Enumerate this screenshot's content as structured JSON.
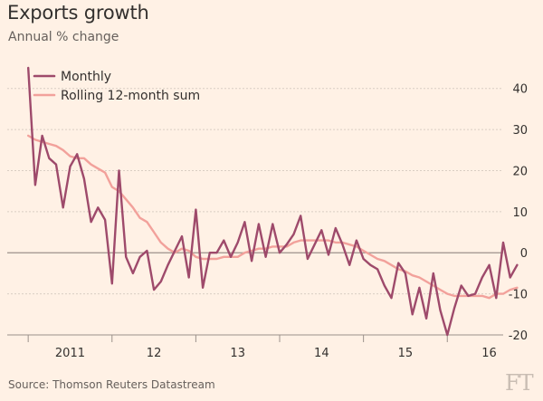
{
  "header": {
    "title": "Exports growth",
    "subtitle": "Annual % change"
  },
  "footer": {
    "source": "Source: Thomson Reuters Datastream",
    "logo": "FT"
  },
  "colors": {
    "background": "#fff1e5",
    "monthly": "#9e4a6b",
    "rolling": "#f2a19b",
    "grid": "#d9cdc3",
    "zero_line": "#9b918a",
    "text": "#33302e"
  },
  "chart_data": {
    "type": "line",
    "x_unit": "month",
    "x_start": "2011-01",
    "xlim": [
      "2010-10",
      "2016-09"
    ],
    "ylim": [
      -20,
      45
    ],
    "y_ticks": [
      40,
      30,
      20,
      10,
      0,
      -10,
      -20
    ],
    "y_tick_labels": [
      "40",
      "30",
      "20",
      "10",
      "0",
      "-10",
      "-20"
    ],
    "y_axis_position": "right",
    "x_tick_labels": [
      {
        "label": "2011",
        "at": "2011-07"
      },
      {
        "label": "12",
        "at": "2012-07"
      },
      {
        "label": "13",
        "at": "2013-07"
      },
      {
        "label": "14",
        "at": "2014-07"
      },
      {
        "label": "15",
        "at": "2015-07"
      },
      {
        "label": "16",
        "at": "2016-07"
      }
    ],
    "grid": true,
    "legend_position": "top-left",
    "series": [
      {
        "name": "Monthly",
        "values": [
          45,
          16.5,
          28.5,
          23,
          21.5,
          11,
          21,
          24,
          18,
          7.5,
          11,
          8,
          -7.5,
          20,
          -1,
          -5,
          -1,
          0.5,
          -9,
          -7,
          -3,
          0.5,
          4,
          -6,
          10.5,
          -8.5,
          0,
          0,
          3,
          -1,
          2.5,
          7.5,
          -2,
          7,
          -1,
          7,
          0,
          2,
          4.5,
          9,
          -1.5,
          2,
          5.5,
          -0.5,
          6,
          2,
          -3,
          3,
          -1.5,
          -3,
          -4,
          -8,
          -11,
          -2.5,
          -5,
          -15,
          -8.5,
          -16,
          -5,
          -14,
          -20,
          -13.5,
          -8,
          -10.5,
          -10,
          -6,
          -3,
          -11,
          2.5,
          -6,
          -3
        ]
      },
      {
        "name": "Rolling 12-month sum",
        "values": [
          28.5,
          27.5,
          27,
          26.5,
          26,
          25,
          23.5,
          23,
          23,
          21.5,
          20.5,
          19.5,
          16,
          15,
          13,
          11,
          8.5,
          7.5,
          5,
          2.5,
          1,
          0,
          1,
          0.5,
          -1,
          -1.5,
          -1.5,
          -1.5,
          -1,
          -1,
          -1,
          0,
          0.5,
          1,
          1,
          1.5,
          1.5,
          1.5,
          2.5,
          3,
          3,
          3,
          3,
          3,
          2.5,
          2.5,
          2,
          1.5,
          0.5,
          -0.5,
          -1.5,
          -2,
          -3,
          -4,
          -4.5,
          -5.5,
          -6,
          -7,
          -8,
          -9,
          -10,
          -10.5,
          -10.5,
          -10.5,
          -10.5,
          -10.5,
          -11,
          -10,
          -10,
          -9,
          -8.5
        ]
      }
    ]
  }
}
